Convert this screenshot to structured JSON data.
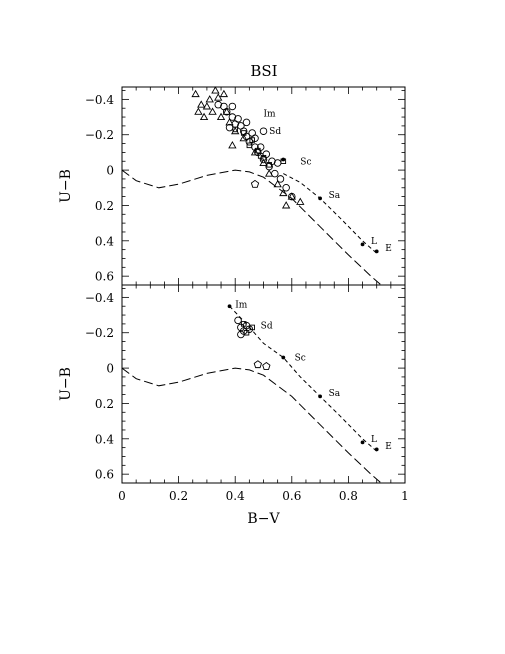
{
  "chart_data": [
    {
      "type": "scatter",
      "title": "BSI",
      "xlabel": "",
      "ylabel": "U−B",
      "xlim": [
        0,
        1
      ],
      "ylim_inverted": [
        0.65,
        -0.47
      ],
      "yticks": [
        "−0.4",
        "−0.2",
        "0",
        "0.2",
        "0.4",
        "0.6"
      ],
      "grid": false,
      "series": [
        {
          "marker": "triangle",
          "points": [
            [
              0.26,
              -0.43
            ],
            [
              0.28,
              -0.37
            ],
            [
              0.27,
              -0.33
            ],
            [
              0.3,
              -0.36
            ],
            [
              0.31,
              -0.4
            ],
            [
              0.33,
              -0.45
            ],
            [
              0.34,
              -0.41
            ],
            [
              0.36,
              -0.43
            ],
            [
              0.35,
              -0.3
            ],
            [
              0.29,
              -0.3
            ],
            [
              0.32,
              -0.33
            ],
            [
              0.37,
              -0.33
            ],
            [
              0.38,
              -0.27
            ],
            [
              0.4,
              -0.22
            ],
            [
              0.39,
              -0.14
            ],
            [
              0.43,
              -0.18
            ],
            [
              0.47,
              -0.1
            ],
            [
              0.5,
              -0.04
            ],
            [
              0.52,
              0.02
            ],
            [
              0.55,
              0.08
            ],
            [
              0.57,
              0.13
            ],
            [
              0.58,
              0.2
            ],
            [
              0.6,
              0.15
            ],
            [
              0.63,
              0.18
            ]
          ]
        },
        {
          "marker": "circle",
          "points": [
            [
              0.34,
              -0.37
            ],
            [
              0.36,
              -0.36
            ],
            [
              0.37,
              -0.33
            ],
            [
              0.39,
              -0.3
            ],
            [
              0.4,
              -0.26
            ],
            [
              0.42,
              -0.25
            ],
            [
              0.41,
              -0.29
            ],
            [
              0.43,
              -0.22
            ],
            [
              0.44,
              -0.19
            ],
            [
              0.45,
              -0.16
            ],
            [
              0.46,
              -0.21
            ],
            [
              0.47,
              -0.13
            ],
            [
              0.48,
              -0.1
            ],
            [
              0.49,
              -0.13
            ],
            [
              0.5,
              -0.06
            ],
            [
              0.51,
              -0.09
            ],
            [
              0.52,
              -0.02
            ],
            [
              0.53,
              -0.05
            ],
            [
              0.54,
              0.02
            ],
            [
              0.56,
              0.05
            ],
            [
              0.47,
              -0.18
            ],
            [
              0.38,
              -0.24
            ],
            [
              0.44,
              -0.27
            ],
            [
              0.39,
              -0.36
            ],
            [
              0.55,
              -0.04
            ],
            [
              0.5,
              -0.22
            ],
            [
              0.58,
              0.1
            ],
            [
              0.6,
              0.15
            ]
          ]
        },
        {
          "marker": "square",
          "points": [
            [
              0.4,
              -0.23
            ],
            [
              0.43,
              -0.21
            ],
            [
              0.45,
              -0.14
            ],
            [
              0.48,
              -0.11
            ],
            [
              0.5,
              -0.07
            ],
            [
              0.52,
              -0.03
            ],
            [
              0.46,
              -0.17
            ],
            [
              0.49,
              -0.08
            ],
            [
              0.57,
              -0.05
            ]
          ]
        },
        {
          "marker": "pentagon",
          "points": [
            [
              0.47,
              0.08
            ]
          ]
        },
        {
          "marker": "dot",
          "points": [
            [
              0.57,
              -0.06
            ],
            [
              0.7,
              0.16
            ],
            [
              0.85,
              0.42
            ],
            [
              0.9,
              0.46
            ]
          ]
        },
        {
          "line": "long-dash",
          "points": [
            [
              0,
              0
            ],
            [
              0.05,
              0.06
            ],
            [
              0.13,
              0.1
            ],
            [
              0.2,
              0.08
            ],
            [
              0.3,
              0.03
            ],
            [
              0.4,
              0
            ],
            [
              0.45,
              0.01
            ],
            [
              0.5,
              0.04
            ],
            [
              0.6,
              0.16
            ],
            [
              0.7,
              0.32
            ],
            [
              0.8,
              0.48
            ],
            [
              0.88,
              0.6
            ],
            [
              0.93,
              0.67
            ]
          ]
        },
        {
          "line": "short-dash",
          "points": [
            [
              0.57,
              0.02
            ],
            [
              0.63,
              0.07
            ],
            [
              0.7,
              0.16
            ],
            [
              0.77,
              0.27
            ],
            [
              0.85,
              0.4
            ],
            [
              0.9,
              0.47
            ]
          ]
        }
      ],
      "annotations": [
        {
          "text": "Im",
          "x": 0.5,
          "y": -0.32
        },
        {
          "text": "Sd",
          "x": 0.52,
          "y": -0.22
        },
        {
          "text": "Sc",
          "x": 0.63,
          "y": -0.05
        },
        {
          "text": "Sa",
          "x": 0.73,
          "y": 0.14
        },
        {
          "text": "L",
          "x": 0.88,
          "y": 0.4
        },
        {
          "text": "E",
          "x": 0.93,
          "y": 0.44
        }
      ]
    },
    {
      "type": "scatter",
      "title": "",
      "xlabel": "B−V",
      "ylabel": "U−B",
      "xlim": [
        0,
        1
      ],
      "ylim_inverted": [
        0.65,
        -0.47
      ],
      "xticks": [
        "0",
        "0.2",
        "0.4",
        "0.6",
        "0.8",
        "1"
      ],
      "yticks": [
        "−0.4",
        "−0.2",
        "0",
        "0.2",
        "0.4",
        "0.6"
      ],
      "grid": false,
      "series": [
        {
          "marker": "circle",
          "points": [
            [
              0.41,
              -0.27
            ],
            [
              0.42,
              -0.23
            ],
            [
              0.43,
              -0.21
            ],
            [
              0.44,
              -0.24
            ],
            [
              0.45,
              -0.22
            ],
            [
              0.42,
              -0.19
            ]
          ]
        },
        {
          "marker": "square",
          "points": [
            [
              0.44,
              -0.2
            ],
            [
              0.46,
              -0.23
            ],
            [
              0.43,
              -0.25
            ]
          ]
        },
        {
          "marker": "pentagon",
          "points": [
            [
              0.48,
              -0.02
            ],
            [
              0.51,
              -0.01
            ]
          ]
        },
        {
          "marker": "dot",
          "points": [
            [
              0.38,
              -0.35
            ],
            [
              0.57,
              -0.06
            ],
            [
              0.7,
              0.16
            ],
            [
              0.85,
              0.42
            ],
            [
              0.9,
              0.46
            ]
          ]
        },
        {
          "line": "long-dash",
          "points": [
            [
              0,
              0
            ],
            [
              0.05,
              0.06
            ],
            [
              0.13,
              0.1
            ],
            [
              0.2,
              0.08
            ],
            [
              0.3,
              0.03
            ],
            [
              0.4,
              0
            ],
            [
              0.45,
              0.01
            ],
            [
              0.5,
              0.04
            ],
            [
              0.6,
              0.16
            ],
            [
              0.7,
              0.32
            ],
            [
              0.8,
              0.48
            ],
            [
              0.88,
              0.6
            ],
            [
              0.93,
              0.67
            ]
          ]
        },
        {
          "line": "short-dash",
          "points": [
            [
              0.38,
              -0.35
            ],
            [
              0.44,
              -0.25
            ],
            [
              0.5,
              -0.14
            ],
            [
              0.57,
              -0.06
            ],
            [
              0.63,
              0.05
            ],
            [
              0.7,
              0.16
            ],
            [
              0.77,
              0.27
            ],
            [
              0.85,
              0.4
            ],
            [
              0.9,
              0.47
            ]
          ]
        }
      ],
      "annotations": [
        {
          "text": "Im",
          "x": 0.4,
          "y": -0.36
        },
        {
          "text": "Sd",
          "x": 0.49,
          "y": -0.24
        },
        {
          "text": "Sc",
          "x": 0.61,
          "y": -0.06
        },
        {
          "text": "Sa",
          "x": 0.73,
          "y": 0.14
        },
        {
          "text": "L",
          "x": 0.88,
          "y": 0.4
        },
        {
          "text": "E",
          "x": 0.93,
          "y": 0.44
        }
      ]
    }
  ]
}
